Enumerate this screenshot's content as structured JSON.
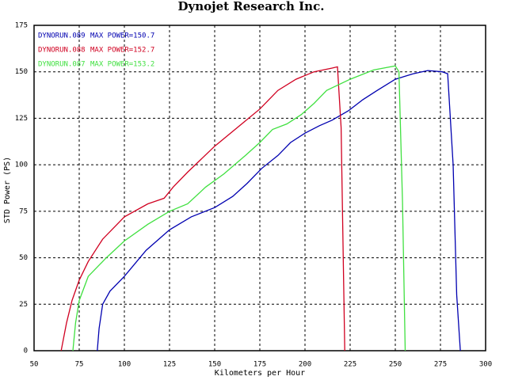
{
  "chart_data": {
    "type": "line",
    "title": "Dynojet  Research  Inc.",
    "x_label": "Kilometers per Hour",
    "y_label": "STD Power (PS)",
    "xlim": [
      50,
      300
    ],
    "xticks": [
      50,
      75,
      100,
      125,
      150,
      175,
      200,
      225,
      250,
      275,
      300
    ],
    "ylim": [
      0,
      175
    ],
    "yticks": [
      0,
      25,
      50,
      75,
      100,
      125,
      150,
      175
    ],
    "grid": true,
    "series": [
      {
        "name": "DYNORUN.089",
        "max_power": "MAX POWER=150.7",
        "color": "#0000b0",
        "x": [
          85,
          86,
          88,
          92,
          100,
          112,
          125,
          137,
          150,
          160,
          168,
          176,
          185,
          192,
          200,
          208,
          215,
          224,
          232,
          240,
          250,
          260,
          268,
          276,
          279,
          282,
          284,
          286
        ],
        "values": [
          0,
          12,
          25,
          32,
          40,
          54,
          65,
          72,
          77,
          83,
          90,
          98,
          105,
          112,
          117,
          121,
          124,
          129,
          135,
          140,
          146,
          149,
          150.7,
          150,
          149,
          100,
          30,
          0
        ]
      },
      {
        "name": "DYNORUN.088",
        "max_power": "MAX POWER=152.7",
        "color": "#d00020",
        "x": [
          65,
          68,
          71,
          75,
          80,
          88,
          100,
          113,
          122,
          127,
          135,
          150,
          165,
          175,
          185,
          195,
          205,
          215,
          218,
          220,
          222
        ],
        "values": [
          0,
          15,
          27,
          38,
          48,
          60,
          72,
          79,
          82,
          88,
          96,
          110,
          122,
          130,
          140,
          146,
          150,
          152,
          152.7,
          120,
          0
        ]
      },
      {
        "name": "DYNORUN.087",
        "max_power": "MAX POWER=153.2",
        "color": "#40e040",
        "x": [
          71.5,
          73,
          75,
          80,
          90,
          100,
          113,
          125,
          135,
          145,
          155,
          167,
          175,
          182,
          190,
          198,
          205,
          212,
          225,
          238,
          250,
          252,
          254,
          255.5
        ],
        "values": [
          0,
          15,
          27,
          40,
          50,
          59,
          68,
          75,
          79,
          88,
          95,
          105,
          112,
          119,
          122,
          127,
          133,
          140,
          146,
          151,
          153.2,
          150,
          80,
          0
        ]
      }
    ]
  }
}
